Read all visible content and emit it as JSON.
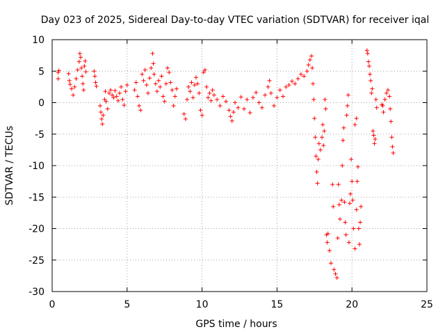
{
  "chart_data": {
    "type": "scatter",
    "title": "Day 023 of 2025, Sidereal Day-to-day VTEC variation (SDTVAR) for receiver iqal",
    "xlabel": "GPS time / hours",
    "ylabel": "SDTVAR / TECUs",
    "xlim": [
      0,
      25
    ],
    "ylim": [
      -30,
      10
    ],
    "xticks": [
      0,
      5,
      10,
      15,
      20,
      25
    ],
    "yticks": [
      -30,
      -25,
      -20,
      -15,
      -10,
      -5,
      0,
      5,
      10
    ],
    "grid": true,
    "marker": "+",
    "color": "#ff0000",
    "series": [
      {
        "name": "SDTVAR",
        "points": [
          [
            0.4,
            4.8
          ],
          [
            0.4,
            3.8
          ],
          [
            0.45,
            5.1
          ],
          [
            1.1,
            4.6
          ],
          [
            1.15,
            3.5
          ],
          [
            1.2,
            2.9
          ],
          [
            1.3,
            2.2
          ],
          [
            1.4,
            1.2
          ],
          [
            1.5,
            2.5
          ],
          [
            1.6,
            3.8
          ],
          [
            1.7,
            5.2
          ],
          [
            1.8,
            6.5
          ],
          [
            1.85,
            7.8
          ],
          [
            1.9,
            7.2
          ],
          [
            1.95,
            5.5
          ],
          [
            2.0,
            4.2
          ],
          [
            2.05,
            3.0
          ],
          [
            2.1,
            2.0
          ],
          [
            2.15,
            5.8
          ],
          [
            2.2,
            6.6
          ],
          [
            2.25,
            4.9
          ],
          [
            2.8,
            5.0
          ],
          [
            2.85,
            4.2
          ],
          [
            2.9,
            3.2
          ],
          [
            2.95,
            2.6
          ],
          [
            3.2,
            -0.5
          ],
          [
            3.25,
            -1.5
          ],
          [
            3.3,
            -2.6
          ],
          [
            3.35,
            -3.4
          ],
          [
            3.4,
            -2.0
          ],
          [
            3.5,
            0.5
          ],
          [
            3.55,
            1.8
          ],
          [
            3.6,
            0.2
          ],
          [
            3.7,
            -1.0
          ],
          [
            3.8,
            1.5
          ],
          [
            3.9,
            2.0
          ],
          [
            4.0,
            1.2
          ],
          [
            4.1,
            0.8
          ],
          [
            4.2,
            1.9
          ],
          [
            4.3,
            1.0
          ],
          [
            4.4,
            0.3
          ],
          [
            4.5,
            1.5
          ],
          [
            4.6,
            2.5
          ],
          [
            4.7,
            0.5
          ],
          [
            4.8,
            -0.4
          ],
          [
            4.9,
            1.8
          ],
          [
            5.0,
            2.8
          ],
          [
            5.5,
            2.0
          ],
          [
            5.6,
            3.2
          ],
          [
            5.7,
            1.0
          ],
          [
            5.8,
            -0.5
          ],
          [
            5.9,
            -1.2
          ],
          [
            6.0,
            4.5
          ],
          [
            6.1,
            3.5
          ],
          [
            6.2,
            5.2
          ],
          [
            6.3,
            2.8
          ],
          [
            6.4,
            1.5
          ],
          [
            6.5,
            3.9
          ],
          [
            6.6,
            5.5
          ],
          [
            6.7,
            7.8
          ],
          [
            6.75,
            6.2
          ],
          [
            6.8,
            4.5
          ],
          [
            6.9,
            3.0
          ],
          [
            7.0,
            1.8
          ],
          [
            7.1,
            3.5
          ],
          [
            7.2,
            2.5
          ],
          [
            7.3,
            4.2
          ],
          [
            7.4,
            1.0
          ],
          [
            7.5,
            0.2
          ],
          [
            7.6,
            3.0
          ],
          [
            7.7,
            5.5
          ],
          [
            7.8,
            4.8
          ],
          [
            7.9,
            3.2
          ],
          [
            8.0,
            2.0
          ],
          [
            8.1,
            -0.5
          ],
          [
            8.2,
            1.0
          ],
          [
            8.3,
            2.2
          ],
          [
            8.8,
            -1.8
          ],
          [
            8.9,
            -2.6
          ],
          [
            9.0,
            0.5
          ],
          [
            9.1,
            2.5
          ],
          [
            9.2,
            1.8
          ],
          [
            9.3,
            3.2
          ],
          [
            9.4,
            0.8
          ],
          [
            9.5,
            2.8
          ],
          [
            9.6,
            4.0
          ],
          [
            9.7,
            3.0
          ],
          [
            9.8,
            1.5
          ],
          [
            9.9,
            -1.2
          ],
          [
            10.0,
            -2.0
          ],
          [
            10.1,
            4.8
          ],
          [
            10.2,
            5.2
          ],
          [
            10.3,
            2.5
          ],
          [
            10.4,
            0.8
          ],
          [
            10.5,
            1.5
          ],
          [
            10.6,
            0.3
          ],
          [
            10.7,
            2.0
          ],
          [
            10.8,
            1.2
          ],
          [
            11.0,
            0.5
          ],
          [
            11.2,
            -0.5
          ],
          [
            11.4,
            1.0
          ],
          [
            11.6,
            0.2
          ],
          [
            11.8,
            -1.2
          ],
          [
            11.9,
            -2.2
          ],
          [
            12.0,
            -2.9
          ],
          [
            12.1,
            -1.5
          ],
          [
            12.2,
            0.0
          ],
          [
            12.4,
            -0.8
          ],
          [
            12.6,
            0.9
          ],
          [
            12.8,
            -1.0
          ],
          [
            13.0,
            0.5
          ],
          [
            13.2,
            -1.6
          ],
          [
            13.4,
            0.8
          ],
          [
            13.6,
            1.6
          ],
          [
            13.8,
            0.0
          ],
          [
            14.0,
            -0.8
          ],
          [
            14.2,
            1.2
          ],
          [
            14.4,
            2.5
          ],
          [
            14.5,
            3.5
          ],
          [
            14.6,
            1.5
          ],
          [
            14.8,
            -0.5
          ],
          [
            15.0,
            0.8
          ],
          [
            15.2,
            2.0
          ],
          [
            15.4,
            1.0
          ],
          [
            15.6,
            2.5
          ],
          [
            15.8,
            2.8
          ],
          [
            16.0,
            3.4
          ],
          [
            16.2,
            3.0
          ],
          [
            16.4,
            3.8
          ],
          [
            16.6,
            4.5
          ],
          [
            16.8,
            4.2
          ],
          [
            17.0,
            5.0
          ],
          [
            17.1,
            6.0
          ],
          [
            17.2,
            6.8
          ],
          [
            17.3,
            7.4
          ],
          [
            17.35,
            5.5
          ],
          [
            17.4,
            3.0
          ],
          [
            17.45,
            0.5
          ],
          [
            17.5,
            -2.5
          ],
          [
            17.55,
            -5.5
          ],
          [
            17.6,
            -8.5
          ],
          [
            17.65,
            -11.0
          ],
          [
            17.7,
            -12.8
          ],
          [
            17.75,
            -9.0
          ],
          [
            17.8,
            -6.5
          ],
          [
            17.9,
            -7.5
          ],
          [
            18.0,
            -5.5
          ],
          [
            18.05,
            -3.5
          ],
          [
            18.1,
            -6.8
          ],
          [
            18.15,
            -4.5
          ],
          [
            18.2,
            0.5
          ],
          [
            18.25,
            -1.0
          ],
          [
            18.3,
            -21.0
          ],
          [
            18.35,
            -22.2
          ],
          [
            18.4,
            -20.8
          ],
          [
            18.5,
            -23.5
          ],
          [
            18.6,
            -25.5
          ],
          [
            18.7,
            -13.0
          ],
          [
            18.75,
            -16.5
          ],
          [
            18.8,
            -26.5
          ],
          [
            18.9,
            -27.2
          ],
          [
            19.0,
            -27.8
          ],
          [
            19.05,
            -21.5
          ],
          [
            19.1,
            -13.0
          ],
          [
            19.15,
            -16.2
          ],
          [
            19.2,
            -18.5
          ],
          [
            19.3,
            -15.5
          ],
          [
            19.35,
            -10.0
          ],
          [
            19.4,
            -6.0
          ],
          [
            19.45,
            -4.0
          ],
          [
            19.5,
            -15.8
          ],
          [
            19.55,
            -19.0
          ],
          [
            19.6,
            -21.0
          ],
          [
            19.65,
            -2.0
          ],
          [
            19.7,
            -0.5
          ],
          [
            19.75,
            1.2
          ],
          [
            19.8,
            -22.2
          ],
          [
            19.85,
            -16.0
          ],
          [
            19.9,
            -14.5
          ],
          [
            19.95,
            -9.0
          ],
          [
            20.0,
            -12.5
          ],
          [
            20.05,
            -15.5
          ],
          [
            20.1,
            -20.0
          ],
          [
            20.2,
            -23.2
          ],
          [
            20.3,
            -17.0
          ],
          [
            20.35,
            -12.5
          ],
          [
            20.4,
            -10.2
          ],
          [
            20.45,
            -20.0
          ],
          [
            20.5,
            -22.5
          ],
          [
            20.55,
            -19.0
          ],
          [
            20.6,
            -16.5
          ],
          [
            20.2,
            -3.5
          ],
          [
            20.3,
            -2.5
          ],
          [
            21.0,
            8.3
          ],
          [
            21.05,
            7.8
          ],
          [
            21.1,
            6.5
          ],
          [
            21.15,
            5.8
          ],
          [
            21.2,
            4.5
          ],
          [
            21.25,
            3.5
          ],
          [
            21.3,
            1.5
          ],
          [
            21.35,
            2.2
          ],
          [
            21.4,
            -4.5
          ],
          [
            21.45,
            -5.2
          ],
          [
            21.5,
            -6.5
          ],
          [
            21.55,
            -5.8
          ],
          [
            21.6,
            0.5
          ],
          [
            21.65,
            -0.8
          ],
          [
            22.0,
            -0.3
          ],
          [
            22.05,
            -0.5
          ],
          [
            22.1,
            -1.5
          ],
          [
            22.2,
            0.5
          ],
          [
            22.3,
            1.5
          ],
          [
            22.4,
            2.0
          ],
          [
            22.5,
            1.0
          ],
          [
            22.55,
            -1.0
          ],
          [
            22.6,
            -3.0
          ],
          [
            22.65,
            -5.5
          ],
          [
            22.7,
            -7.0
          ],
          [
            22.75,
            -8.0
          ]
        ]
      }
    ]
  }
}
